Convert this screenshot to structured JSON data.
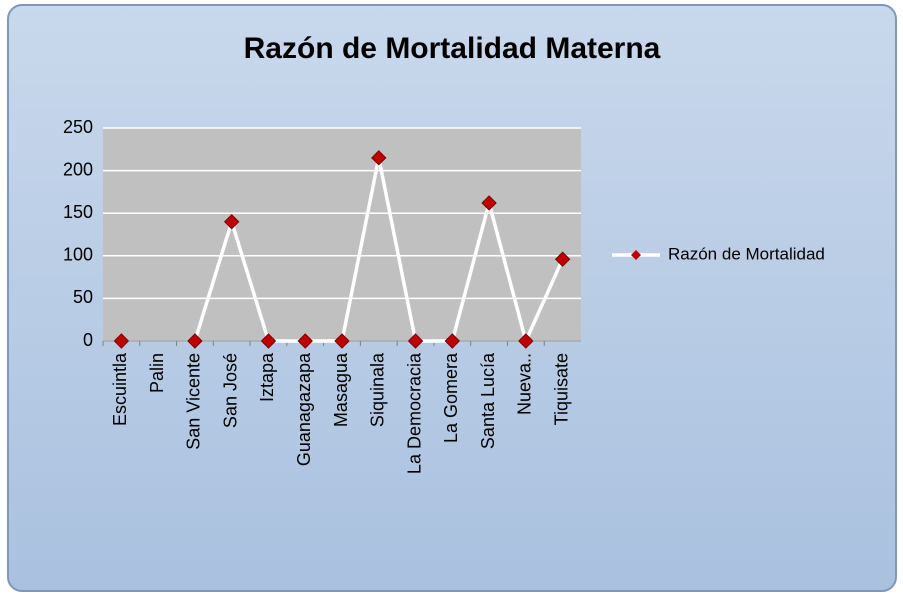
{
  "chart_data": {
    "type": "line",
    "title": "Razón de Mortalidad Materna",
    "categories": [
      "Escuintla",
      "Palin",
      "San Vicente",
      "San José",
      "Iztapa",
      "Guanagazapa",
      "Masagua",
      "Siquinala",
      "La Democracia",
      "La Gomera",
      "Santa Lucía",
      "Nueva..",
      "Tiquisate"
    ],
    "series": [
      {
        "name": "Razón de Mortalidad",
        "color": "#ffffff",
        "marker_color": "#c00000",
        "values": [
          0,
          null,
          0,
          140,
          0,
          0,
          0,
          215,
          0,
          0,
          162,
          0,
          96
        ]
      }
    ],
    "ylim": [
      0,
      250
    ],
    "yticks": [
      0,
      50,
      100,
      150,
      200,
      250
    ],
    "grid": true,
    "legend": "right"
  }
}
